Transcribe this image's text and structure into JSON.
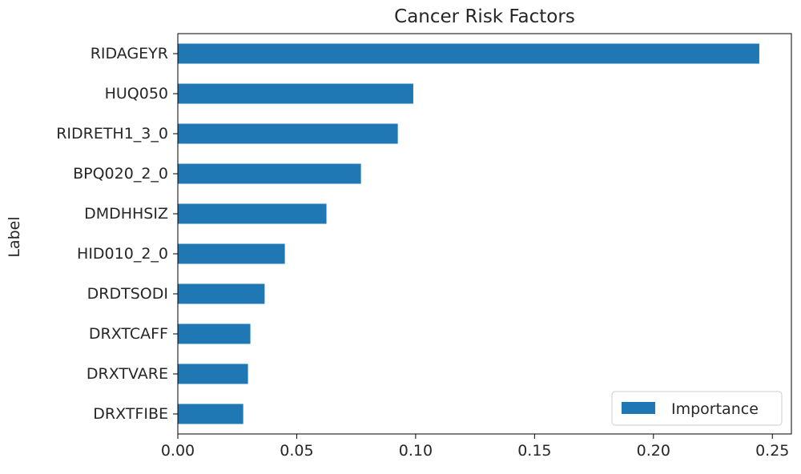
{
  "chart_data": {
    "type": "bar",
    "orientation": "horizontal",
    "title": "Cancer Risk Factors",
    "xlabel": "",
    "ylabel": "Label",
    "categories": [
      "RIDAGEYR",
      "HUQ050",
      "RIDRETH1_3_0",
      "BPQ020_2_0",
      "DMDHHSIZ",
      "HID010_2_0",
      "DRDTSODI",
      "DRXTCAFF",
      "DRXTVARE",
      "DRXTFIBE"
    ],
    "series": [
      {
        "name": "Importance",
        "color": "#1f77b4",
        "values": [
          0.2445,
          0.099,
          0.0925,
          0.077,
          0.0625,
          0.045,
          0.0365,
          0.0305,
          0.0295,
          0.0275
        ]
      }
    ],
    "xlim": [
      0,
      0.258
    ],
    "xticks": [
      0.0,
      0.05,
      0.1,
      0.15,
      0.2,
      0.25
    ],
    "xtick_labels": [
      "0.00",
      "0.05",
      "0.10",
      "0.15",
      "0.20",
      "0.25"
    ],
    "grid": false,
    "legend_position": "lower right"
  }
}
